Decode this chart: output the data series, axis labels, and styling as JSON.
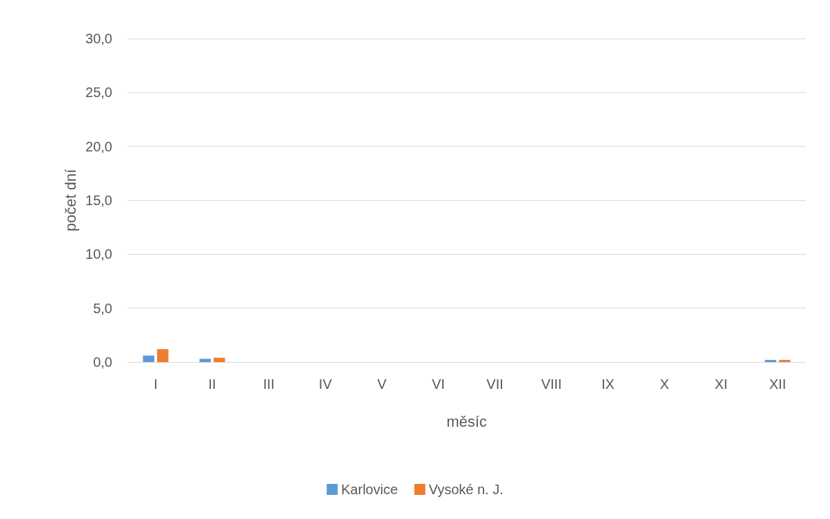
{
  "chart_data": {
    "type": "bar",
    "xlabel": "měsíc",
    "ylabel": "počet dní",
    "categories": [
      "I",
      "II",
      "III",
      "IV",
      "V",
      "VI",
      "VII",
      "VIII",
      "IX",
      "X",
      "XI",
      "XII"
    ],
    "series": [
      {
        "name": "Karlovice",
        "color": "#5b9bd5",
        "values": [
          0.6,
          0.3,
          0,
          0,
          0,
          0,
          0,
          0,
          0,
          0,
          0,
          0.2
        ]
      },
      {
        "name": "Vysoké n. J.",
        "color": "#ed7d31",
        "values": [
          1.2,
          0.4,
          0,
          0,
          0,
          0,
          0,
          0,
          0,
          0,
          0,
          0.2
        ]
      }
    ],
    "ylim": [
      0,
      30
    ],
    "yticks": [
      {
        "value": 0,
        "label": "0,0"
      },
      {
        "value": 5,
        "label": "5,0"
      },
      {
        "value": 10,
        "label": "10,0"
      },
      {
        "value": 15,
        "label": "15,0"
      },
      {
        "value": 20,
        "label": "20,0"
      },
      {
        "value": 25,
        "label": "25,0"
      },
      {
        "value": 30,
        "label": "30,0"
      }
    ],
    "grid": "y",
    "legend": "bottom"
  }
}
